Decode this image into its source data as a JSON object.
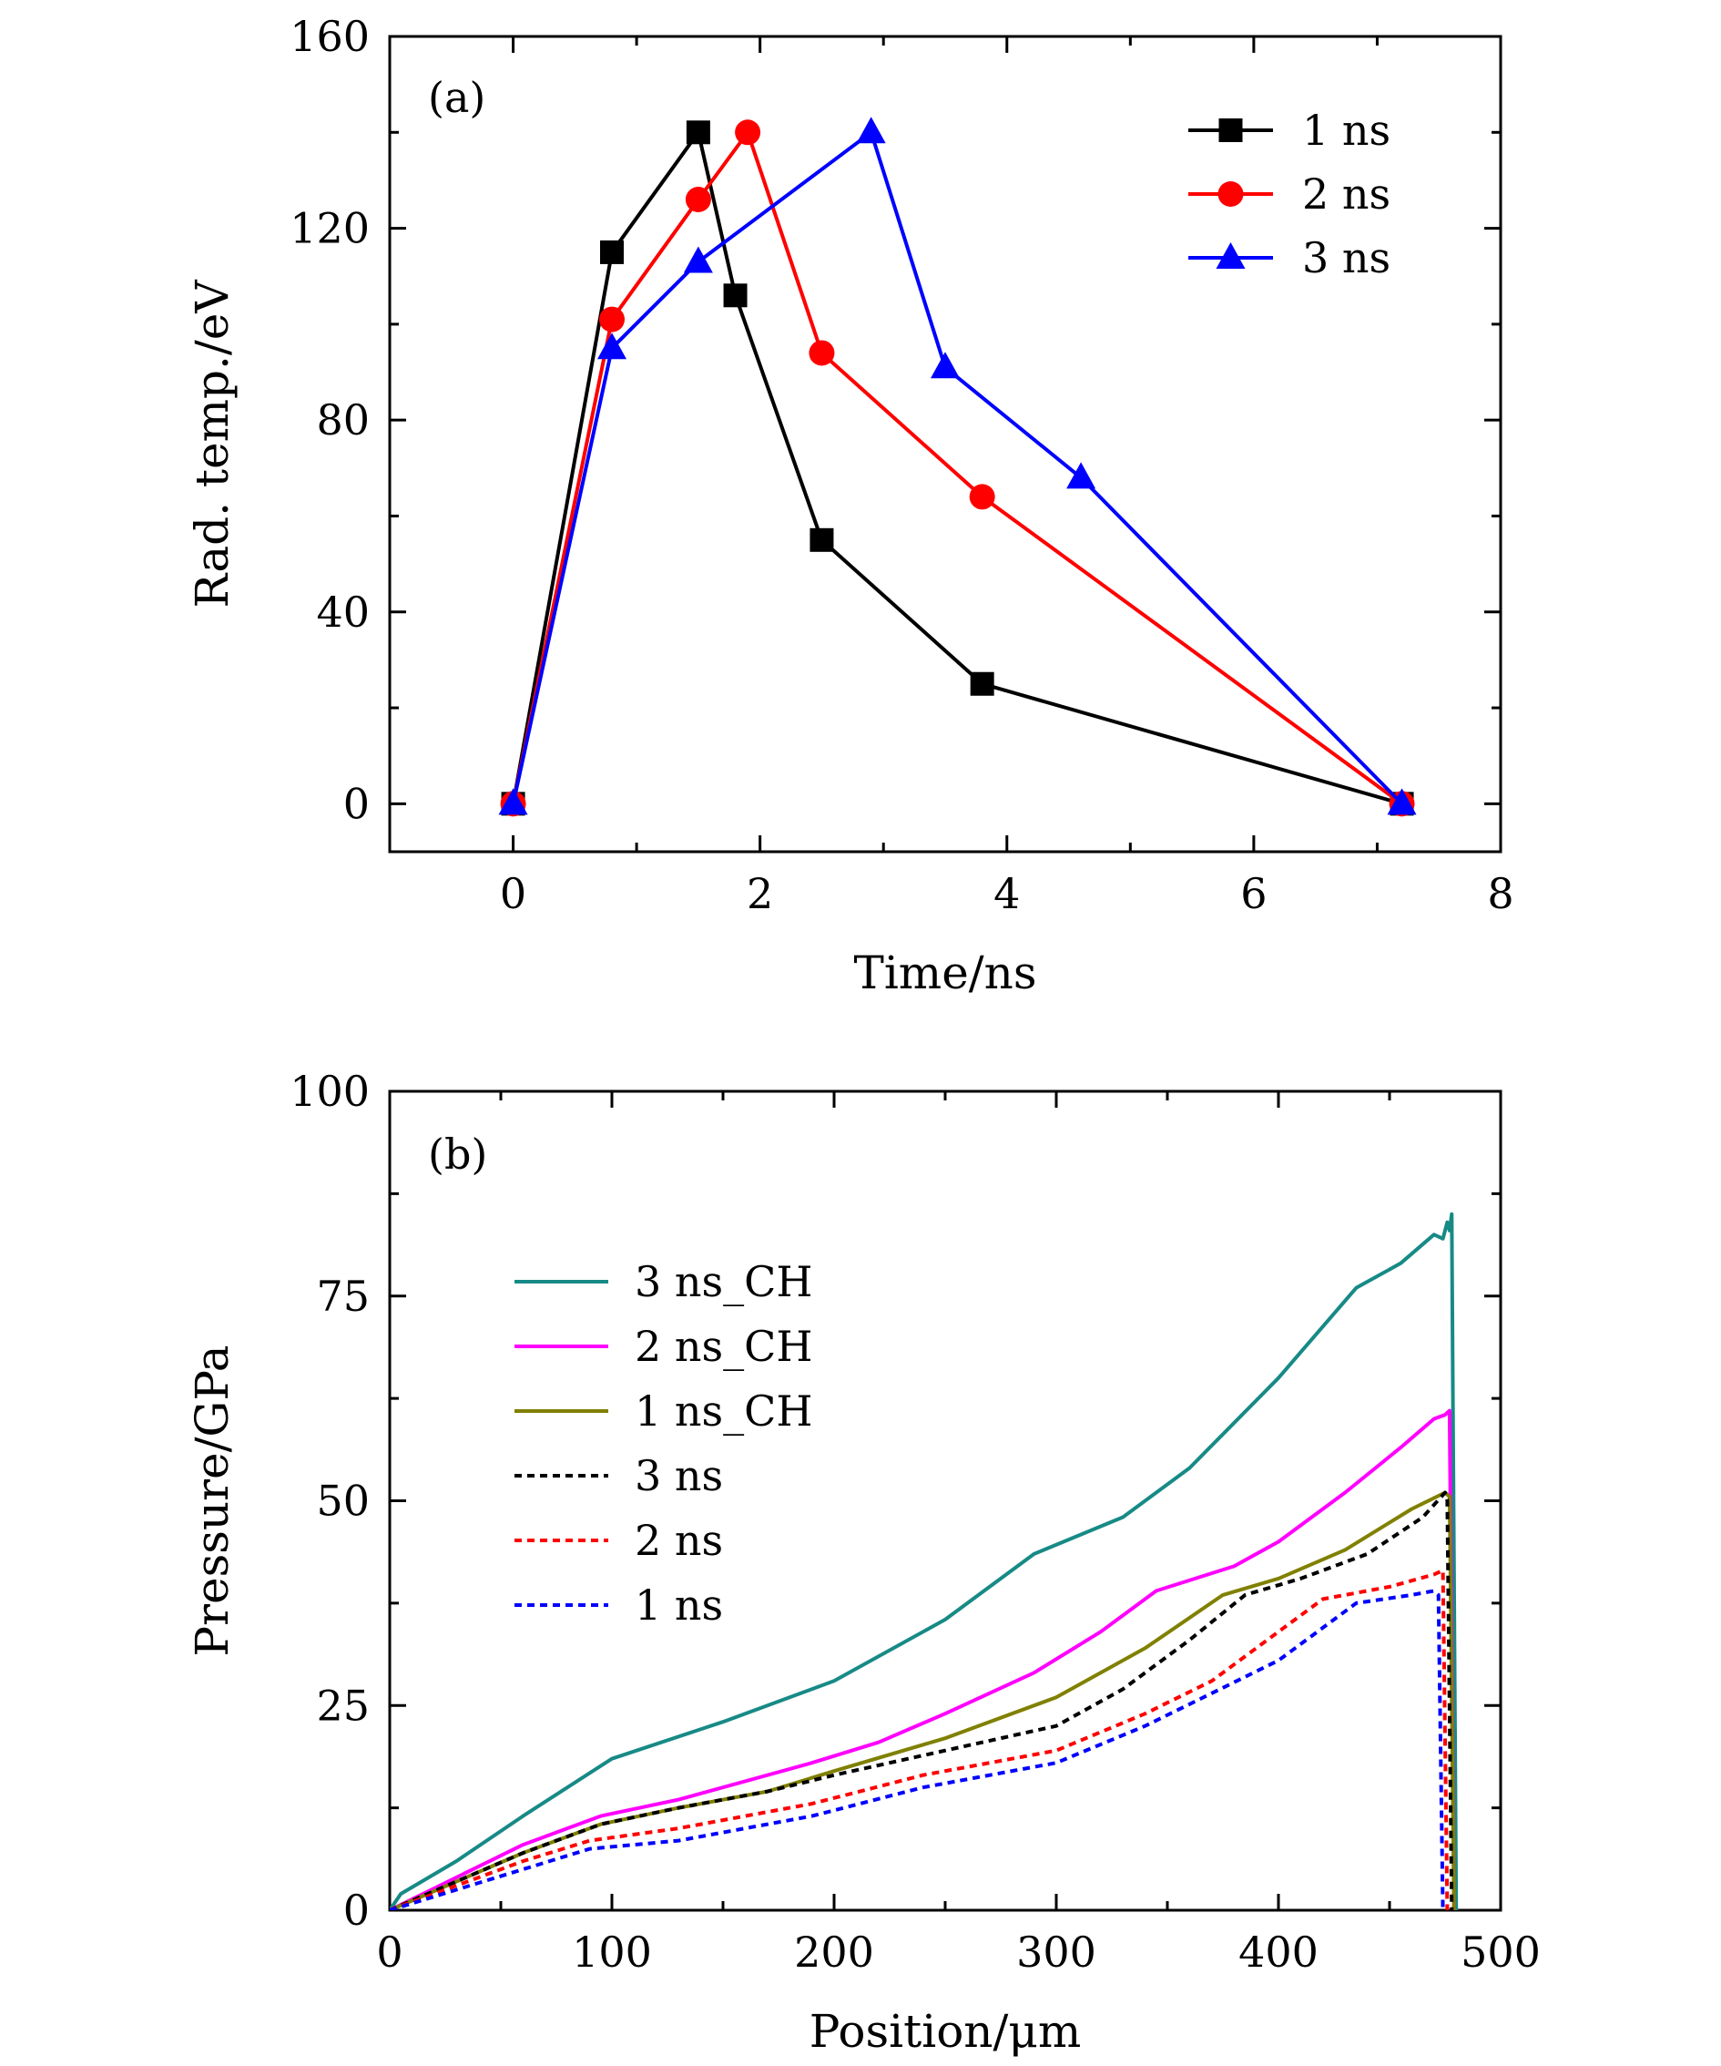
{
  "chart_data": [
    {
      "type": "line",
      "panel_label": "(a)",
      "xlabel": "Time/ns",
      "ylabel": "Rad. temp./eV",
      "xlim": [
        -1,
        8
      ],
      "ylim": [
        -10,
        160
      ],
      "x_ticks": [
        0,
        2,
        4,
        6,
        8
      ],
      "y_ticks": [
        0,
        40,
        80,
        120,
        160
      ],
      "x_tick_labels": [
        "0",
        "2",
        "4",
        "6",
        "8"
      ],
      "y_tick_labels": [
        "0",
        "40",
        "80",
        "120",
        "160"
      ],
      "legend_position": "top-right",
      "series": [
        {
          "name": "1 ns",
          "color": "#000000",
          "marker": "square",
          "x": [
            0,
            0.8,
            1.5,
            1.8,
            2.5,
            3.8,
            7.2
          ],
          "y": [
            0,
            115,
            140,
            106,
            55,
            25,
            0
          ]
        },
        {
          "name": "2 ns",
          "color": "#ff0000",
          "marker": "circle",
          "x": [
            0,
            0.8,
            1.5,
            1.9,
            2.5,
            3.8,
            7.2
          ],
          "y": [
            0,
            101,
            126,
            140,
            94,
            64,
            0
          ]
        },
        {
          "name": "3 ns",
          "color": "#0000ff",
          "marker": "triangle",
          "x": [
            0,
            0.8,
            1.5,
            2.9,
            3.5,
            4.6,
            7.2
          ],
          "y": [
            0,
            95,
            113,
            140,
            91,
            68,
            0
          ]
        }
      ]
    },
    {
      "type": "line",
      "panel_label": "(b)",
      "xlabel": "Position/μm",
      "ylabel": "Pressure/GPa",
      "xlim": [
        0,
        500
      ],
      "ylim": [
        0,
        100
      ],
      "x_ticks": [
        0,
        100,
        200,
        300,
        400,
        500
      ],
      "y_ticks": [
        0,
        25,
        50,
        75,
        100
      ],
      "x_tick_labels": [
        "0",
        "100",
        "200",
        "300",
        "400",
        "500"
      ],
      "y_tick_labels": [
        "0",
        "25",
        "50",
        "75",
        "100"
      ],
      "legend_position": "top-left",
      "series": [
        {
          "name": "3 ns_CH",
          "color": "#178a86",
          "dash": false,
          "x": [
            0,
            5,
            30,
            60,
            100,
            150,
            200,
            250,
            290,
            330,
            360,
            400,
            435,
            455,
            470,
            474,
            476,
            477,
            478,
            480
          ],
          "y": [
            0,
            2,
            6,
            11.5,
            18.5,
            23,
            28,
            35.5,
            43.5,
            48,
            54,
            65,
            76,
            79,
            82.5,
            82,
            84,
            83,
            85,
            0
          ]
        },
        {
          "name": "2 ns_CH",
          "color": "#ff00ff",
          "dash": false,
          "x": [
            0,
            30,
            60,
            95,
            130,
            190,
            220,
            250,
            290,
            320,
            345,
            380,
            400,
            430,
            455,
            470,
            475,
            477,
            479
          ],
          "y": [
            0,
            4,
            8,
            11.5,
            13.5,
            18,
            20.5,
            24,
            29,
            34,
            39,
            42,
            45,
            51,
            56.5,
            60,
            60.5,
            61,
            0
          ]
        },
        {
          "name": "1 ns_CH",
          "color": "#808000",
          "dash": false,
          "x": [
            0,
            30,
            60,
            95,
            130,
            170,
            200,
            250,
            300,
            340,
            375,
            400,
            430,
            460,
            475,
            477,
            479
          ],
          "y": [
            0,
            3.5,
            7,
            10.5,
            12.5,
            14.5,
            17,
            21,
            26,
            32,
            38.5,
            40.5,
            44,
            49,
            51,
            50.5,
            0
          ]
        },
        {
          "name": "3 ns",
          "color": "#000000",
          "dash": true,
          "x": [
            0,
            30,
            60,
            95,
            130,
            170,
            200,
            250,
            300,
            330,
            360,
            385,
            410,
            440,
            465,
            475,
            476,
            478
          ],
          "y": [
            0,
            3.5,
            7,
            10.5,
            12.5,
            14.5,
            16.5,
            19.5,
            22.5,
            27,
            33,
            38.5,
            40.5,
            43.5,
            48,
            51,
            50,
            0
          ]
        },
        {
          "name": "2 ns",
          "color": "#ff0000",
          "dash": true,
          "x": [
            0,
            30,
            60,
            90,
            130,
            190,
            240,
            300,
            340,
            370,
            400,
            420,
            450,
            470,
            474,
            476
          ],
          "y": [
            0,
            3,
            6,
            8.5,
            10,
            13,
            16.5,
            19.5,
            24,
            28,
            34,
            38,
            39.5,
            41,
            41.5,
            0
          ]
        },
        {
          "name": "1 ns",
          "color": "#0000ff",
          "dash": true,
          "x": [
            0,
            30,
            60,
            90,
            130,
            190,
            240,
            300,
            340,
            370,
            400,
            435,
            460,
            470,
            472,
            474
          ],
          "y": [
            0,
            2.5,
            5,
            7.5,
            8.5,
            11.5,
            15,
            18,
            22.5,
            26.5,
            30.5,
            37.5,
            38.5,
            39,
            38.5,
            0
          ]
        }
      ]
    }
  ]
}
